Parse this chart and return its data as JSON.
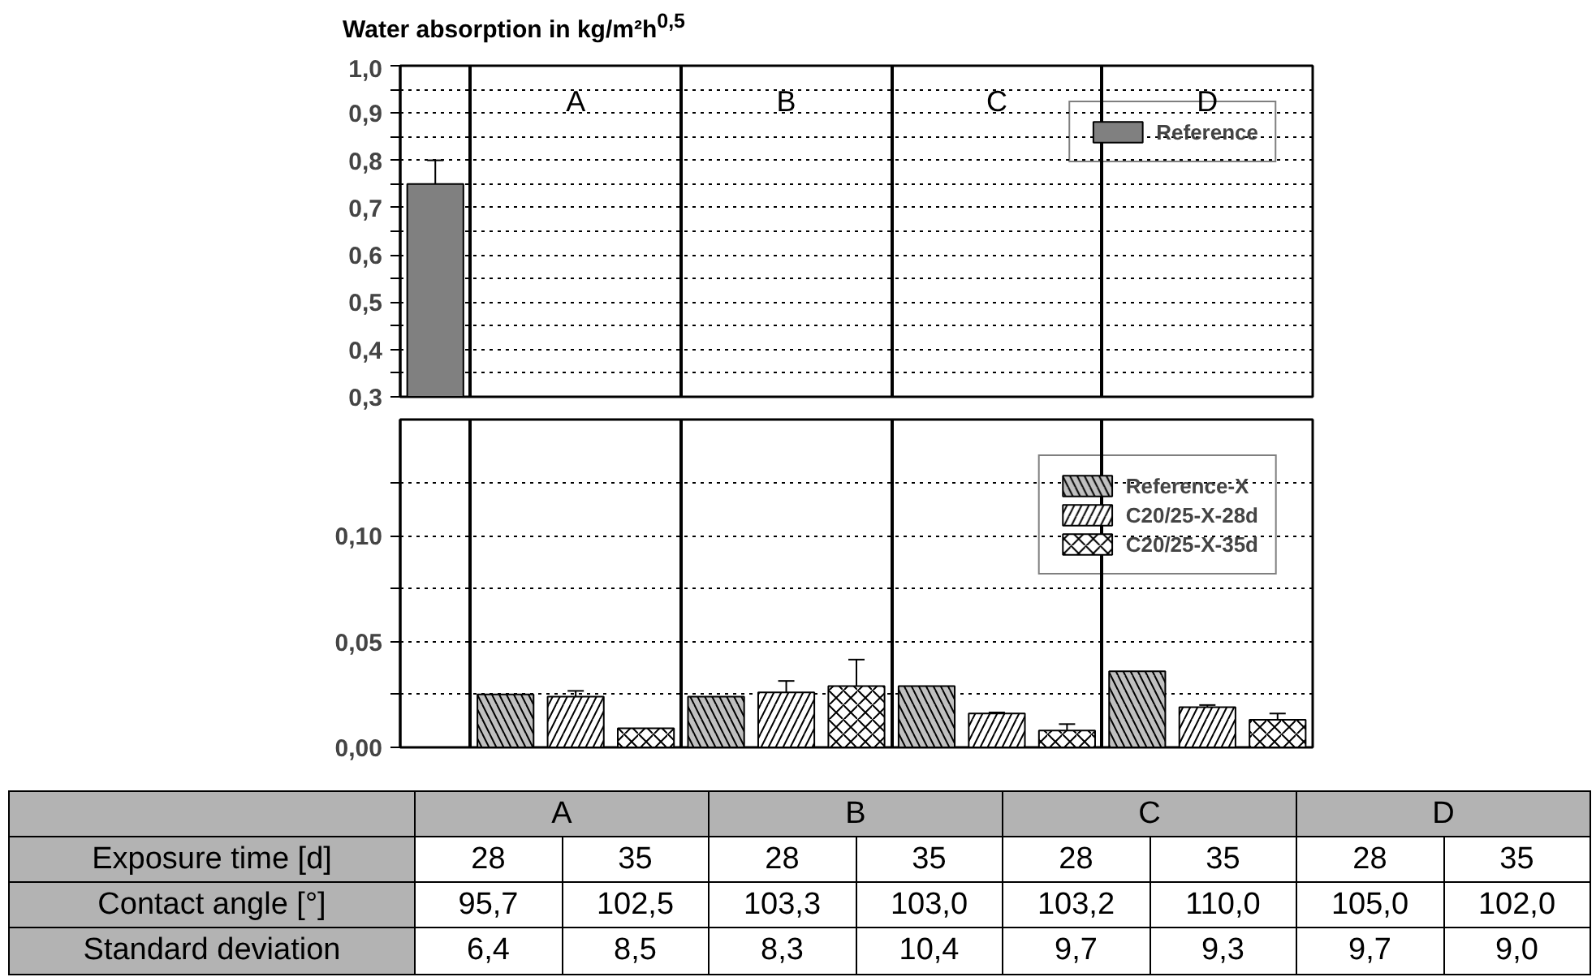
{
  "chart_data": [
    {
      "type": "bar",
      "title": "Water absorption in kg/m²h$^{0,5}$",
      "categories": [
        null,
        "A",
        "B",
        "C",
        "D"
      ],
      "series": [
        {
          "name": "Reference",
          "color": "#808080",
          "values": [
            0.75,
            null,
            null,
            null,
            null
          ],
          "errors": [
            0.05,
            null,
            null,
            null,
            null
          ]
        }
      ],
      "ylim": [
        0.3,
        1.0
      ],
      "yticks": [
        {
          "value": 0.3,
          "label": "0,3"
        },
        {
          "value": 0.35,
          "label": null
        },
        {
          "value": 0.4,
          "label": "0,4"
        },
        {
          "value": 0.45,
          "label": null
        },
        {
          "value": 0.5,
          "label": "0,5"
        },
        {
          "value": 0.55,
          "label": null
        },
        {
          "value": 0.6,
          "label": "0,6"
        },
        {
          "value": 0.65,
          "label": null
        },
        {
          "value": 0.7,
          "label": "0,7"
        },
        {
          "value": 0.75,
          "label": null
        },
        {
          "value": 0.8,
          "label": "0,8"
        },
        {
          "value": 0.85,
          "label": null
        },
        {
          "value": 0.9,
          "label": "0,9"
        },
        {
          "value": 0.95,
          "label": null
        },
        {
          "value": 1.0,
          "label": "1,0"
        }
      ],
      "grid": "y",
      "legend": "top right"
    },
    {
      "type": "bar",
      "categories": [
        null,
        null,
        null,
        null,
        null
      ],
      "series": [
        {
          "name": "Reference-X",
          "color": "#c0c0c0",
          "values": [
            null,
            0.025,
            0.024,
            0.029,
            0.036
          ]
        },
        {
          "name": "C20/25-X-28d",
          "color": "#ffffff",
          "values": [
            null,
            0.024,
            0.026,
            0.016,
            0.019
          ],
          "errors": [
            null,
            0.0027,
            0.0054,
            0.0005,
            0.001
          ]
        },
        {
          "name": "C20/25-X-35d",
          "color": "#ffffff",
          "values": [
            null,
            0.009,
            0.029,
            0.008,
            0.013
          ],
          "errors": [
            null,
            null,
            0.0125,
            0.003,
            0.003
          ]
        }
      ],
      "ylim": [
        0,
        0.155
      ],
      "yticks": [
        {
          "value": 0,
          "label": "0,00"
        },
        {
          "value": 0.025,
          "label": null
        },
        {
          "value": 0.05,
          "label": "0,05"
        },
        {
          "value": 0.075,
          "label": null
        },
        {
          "value": 0.1,
          "label": "0,10"
        },
        {
          "value": 0.125,
          "label": null
        }
      ],
      "grid": "y",
      "legend": "top right"
    },
    {
      "type": "other",
      "categories": [
        "A",
        "B",
        "C",
        "D"
      ],
      "y_categories": [
        "Exposure time [d]",
        "Contact angle [°]",
        "Standard deviation"
      ],
      "cell_labels": [
        [
          "28",
          "35",
          "28",
          "35",
          "28",
          "35",
          "28",
          "35"
        ],
        [
          "95,7",
          "102,5",
          "103,3",
          "103,0",
          "103,2",
          "110,0",
          "105,0",
          "102,0"
        ],
        [
          "6,4",
          "8,5",
          "8,3",
          "10,4",
          "9,7",
          "9,3",
          "9,7",
          "9,0"
        ]
      ]
    }
  ]
}
